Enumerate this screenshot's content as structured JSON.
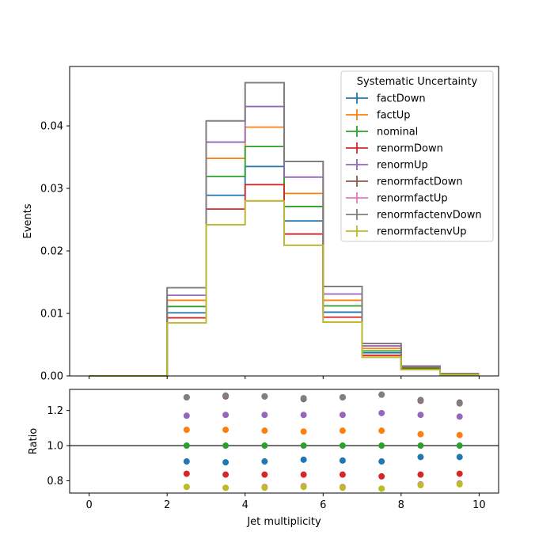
{
  "chart_data": [
    {
      "type": "line",
      "subtype": "step-histogram",
      "title": "",
      "xlabel": "",
      "ylabel": "Events",
      "xlim": [
        -0.5,
        10.5
      ],
      "ylim": [
        0,
        0.0495
      ],
      "bin_edges": [
        0,
        1,
        2,
        3,
        4,
        5,
        6,
        7,
        8,
        9,
        10
      ],
      "yticks": [
        {
          "value": 0,
          "label": "0.00"
        },
        {
          "value": 0.01,
          "label": "0.01"
        },
        {
          "value": 0.02,
          "label": "0.02"
        },
        {
          "value": 0.03,
          "label": "0.03"
        },
        {
          "value": 0.04,
          "label": "0.04"
        }
      ],
      "legend": {
        "title": "Systematic Uncertainty",
        "position": "top-right"
      },
      "series": [
        {
          "name": "factDown",
          "color": "#1f77b4",
          "values": [
            0,
            0,
            0.0101,
            0.0289,
            0.0335,
            0.0248,
            0.0102,
            0.0037,
            0.0012,
            0.0003
          ]
        },
        {
          "name": "factUp",
          "color": "#ff7f0e",
          "values": [
            0,
            0,
            0.0121,
            0.0348,
            0.0398,
            0.0292,
            0.0121,
            0.0044,
            0.0014,
            0.0003
          ]
        },
        {
          "name": "nominal",
          "color": "#2ca02c",
          "values": [
            0,
            0,
            0.0111,
            0.0319,
            0.0367,
            0.0271,
            0.0112,
            0.004,
            0.0013,
            0.0003
          ]
        },
        {
          "name": "renormDown",
          "color": "#d62728",
          "values": [
            0,
            0,
            0.0093,
            0.0267,
            0.0306,
            0.0227,
            0.0094,
            0.0033,
            0.0011,
            0.0003
          ]
        },
        {
          "name": "renormUp",
          "color": "#9467bd",
          "values": [
            0,
            0,
            0.0129,
            0.0374,
            0.0431,
            0.0318,
            0.0131,
            0.0048,
            0.0015,
            0.0004
          ]
        },
        {
          "name": "renormfactDown",
          "color": "#8c564b",
          "values": [
            0,
            0,
            0.0141,
            0.0408,
            0.0469,
            0.0343,
            0.0143,
            0.0052,
            0.0016,
            0.0004
          ]
        },
        {
          "name": "renormfactUp",
          "color": "#e377c2",
          "values": [
            0,
            0,
            0.0085,
            0.0242,
            0.028,
            0.0209,
            0.0086,
            0.003,
            0.001,
            0.0002
          ]
        },
        {
          "name": "renormfactenvDown",
          "color": "#7f7f7f",
          "values": [
            0,
            0,
            0.0141,
            0.0408,
            0.0469,
            0.0343,
            0.0143,
            0.0052,
            0.0016,
            0.0004
          ]
        },
        {
          "name": "renormfactenvUp",
          "color": "#bcbd22",
          "values": [
            0,
            0,
            0.0085,
            0.0242,
            0.028,
            0.0209,
            0.0086,
            0.003,
            0.001,
            0.0002
          ]
        }
      ]
    },
    {
      "type": "scatter",
      "title": "",
      "xlabel": "Jet multiplicity",
      "ylabel": "Ratio",
      "xlim": [
        -0.5,
        10.5
      ],
      "ylim": [
        0.73,
        1.32
      ],
      "xticks": [
        {
          "value": 0,
          "label": "0"
        },
        {
          "value": 2,
          "label": "2"
        },
        {
          "value": 4,
          "label": "4"
        },
        {
          "value": 6,
          "label": "6"
        },
        {
          "value": 8,
          "label": "8"
        },
        {
          "value": 10,
          "label": "10"
        }
      ],
      "yticks": [
        {
          "value": 0.8,
          "label": "0.8"
        },
        {
          "value": 1.0,
          "label": "1.0"
        },
        {
          "value": 1.2,
          "label": "1.2"
        }
      ],
      "reference_line": 1.0,
      "x": [
        2.5,
        3.5,
        4.5,
        5.5,
        6.5,
        7.5,
        8.5,
        9.5
      ],
      "series": [
        {
          "name": "factDown",
          "color": "#1f77b4",
          "values": [
            0.91,
            0.905,
            0.91,
            0.92,
            0.915,
            0.91,
            0.935,
            0.935
          ]
        },
        {
          "name": "factUp",
          "color": "#ff7f0e",
          "values": [
            1.09,
            1.09,
            1.085,
            1.08,
            1.085,
            1.085,
            1.065,
            1.06
          ]
        },
        {
          "name": "nominal",
          "color": "#2ca02c",
          "values": [
            1.0,
            1.0,
            1.0,
            1.0,
            1.0,
            1.0,
            1.0,
            1.0
          ]
        },
        {
          "name": "renormDown",
          "color": "#d62728",
          "values": [
            0.84,
            0.835,
            0.835,
            0.835,
            0.835,
            0.825,
            0.835,
            0.84
          ]
        },
        {
          "name": "renormUp",
          "color": "#9467bd",
          "values": [
            1.17,
            1.175,
            1.175,
            1.175,
            1.175,
            1.185,
            1.175,
            1.165
          ]
        },
        {
          "name": "renormfactDown",
          "color": "#8c564b",
          "values": [
            1.275,
            1.28,
            1.28,
            1.265,
            1.275,
            1.29,
            1.255,
            1.245
          ]
        },
        {
          "name": "renormfactUp",
          "color": "#e377c2",
          "values": [
            0.765,
            0.76,
            0.765,
            0.77,
            0.765,
            0.755,
            0.78,
            0.785
          ]
        },
        {
          "name": "renormfactenvDown",
          "color": "#7f7f7f",
          "values": [
            1.275,
            1.285,
            1.28,
            1.27,
            1.275,
            1.29,
            1.26,
            1.24
          ]
        },
        {
          "name": "renormfactenvUp",
          "color": "#bcbd22",
          "values": [
            0.765,
            0.76,
            0.76,
            0.765,
            0.76,
            0.755,
            0.775,
            0.78
          ]
        }
      ]
    }
  ]
}
